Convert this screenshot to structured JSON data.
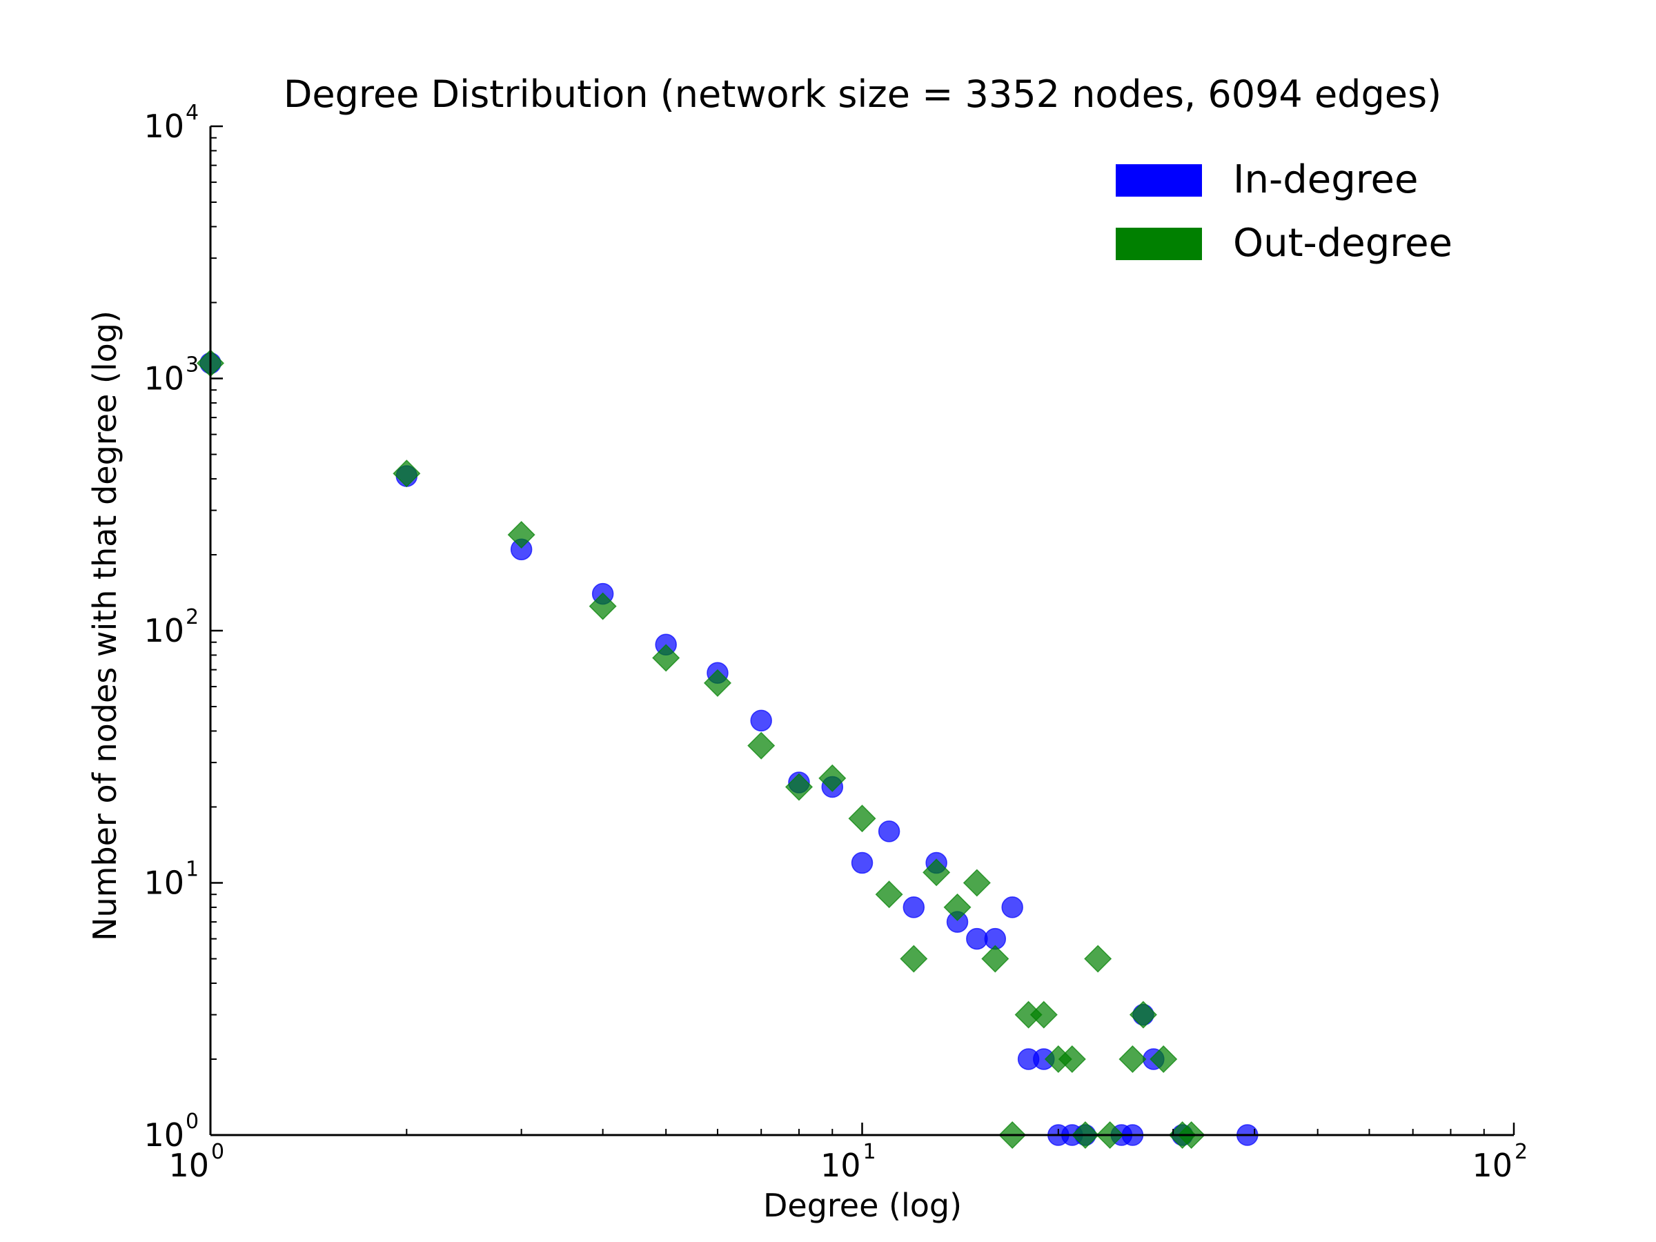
{
  "chart_data": {
    "type": "scatter",
    "title": "Degree Distribution (network size = 3352 nodes, 6094 edges)",
    "xlabel": "Degree (log)",
    "ylabel": "Number of nodes with that degree (log)",
    "x_scale": "log",
    "y_scale": "log",
    "xlim": [
      1,
      100
    ],
    "ylim": [
      1,
      10000
    ],
    "x_ticks": [
      {
        "value": 1,
        "base": "10",
        "exp": "0"
      },
      {
        "value": 10,
        "base": "10",
        "exp": "1"
      },
      {
        "value": 100,
        "base": "10",
        "exp": "2"
      }
    ],
    "y_ticks": [
      {
        "value": 1,
        "base": "10",
        "exp": "0"
      },
      {
        "value": 10,
        "base": "10",
        "exp": "1"
      },
      {
        "value": 100,
        "base": "10",
        "exp": "2"
      },
      {
        "value": 1000,
        "base": "10",
        "exp": "3"
      },
      {
        "value": 10000,
        "base": "10",
        "exp": "4"
      }
    ],
    "grid": false,
    "legend_position": "top-right",
    "series": [
      {
        "name": "In-degree",
        "marker": "circle",
        "color": "#0000ff",
        "points": [
          [
            1,
            1150
          ],
          [
            2,
            410
          ],
          [
            3,
            210
          ],
          [
            4,
            140
          ],
          [
            5,
            88
          ],
          [
            6,
            68
          ],
          [
            7,
            44
          ],
          [
            8,
            25
          ],
          [
            9,
            24
          ],
          [
            10,
            12
          ],
          [
            11,
            16
          ],
          [
            12,
            8
          ],
          [
            13,
            12
          ],
          [
            14,
            7
          ],
          [
            15,
            6
          ],
          [
            16,
            6
          ],
          [
            17,
            8
          ],
          [
            18,
            2
          ],
          [
            19,
            2
          ],
          [
            20,
            1
          ],
          [
            21,
            1
          ],
          [
            22,
            1
          ],
          [
            25,
            1
          ],
          [
            26,
            1
          ],
          [
            27,
            3
          ],
          [
            28,
            2
          ],
          [
            31,
            1
          ],
          [
            39,
            1
          ]
        ]
      },
      {
        "name": "Out-degree",
        "marker": "diamond",
        "color": "#008000",
        "points": [
          [
            1,
            1150
          ],
          [
            2,
            420
          ],
          [
            3,
            240
          ],
          [
            4,
            125
          ],
          [
            5,
            78
          ],
          [
            6,
            62
          ],
          [
            7,
            35
          ],
          [
            8,
            24
          ],
          [
            9,
            26
          ],
          [
            10,
            18
          ],
          [
            11,
            9
          ],
          [
            12,
            5
          ],
          [
            13,
            11
          ],
          [
            14,
            8
          ],
          [
            15,
            10
          ],
          [
            16,
            5
          ],
          [
            17,
            1
          ],
          [
            18,
            3
          ],
          [
            19,
            3
          ],
          [
            20,
            2
          ],
          [
            21,
            2
          ],
          [
            22,
            1
          ],
          [
            23,
            5
          ],
          [
            24,
            1
          ],
          [
            26,
            2
          ],
          [
            27,
            3
          ],
          [
            29,
            2
          ],
          [
            31,
            1
          ],
          [
            32,
            1
          ]
        ]
      }
    ]
  }
}
